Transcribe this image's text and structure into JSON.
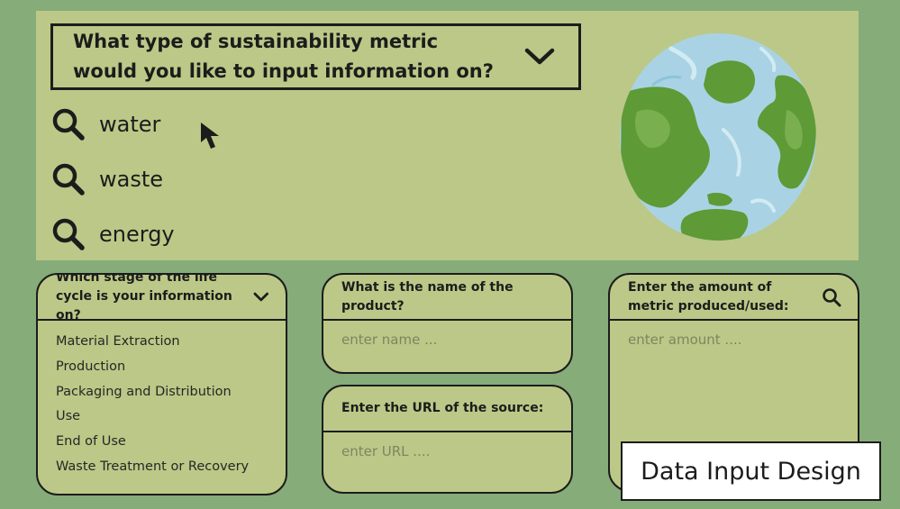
{
  "metric_select": {
    "question": "What type of sustainability metric would you like to input information on?",
    "options": [
      "water",
      "waste",
      "energy"
    ]
  },
  "stage_card": {
    "question": "Which stage of the life cycle is your information on?",
    "items": [
      "Material Extraction",
      "Production",
      "Packaging and Distribution",
      "Use",
      "End of Use",
      "Waste Treatment or Recovery"
    ]
  },
  "product_card": {
    "question": "What is the name of the product?",
    "placeholder": "enter name ..."
  },
  "url_card": {
    "question": "Enter the URL of the source:",
    "placeholder": "enter URL ...."
  },
  "amount_card": {
    "question": "Enter the amount of metric produced/used:",
    "placeholder": "enter amount ...."
  },
  "brand_label": "Data Input Design",
  "colors": {
    "background": "#86ac79",
    "panel": "#bcc887",
    "ink": "#1c1c1c",
    "globe_water": "#a9d3e4",
    "globe_land": "#5e9a36"
  },
  "icons": {
    "search": "search-icon",
    "dropdown": "chevron-down-icon",
    "cursor": "cursor-icon",
    "globe": "globe-illustration"
  }
}
